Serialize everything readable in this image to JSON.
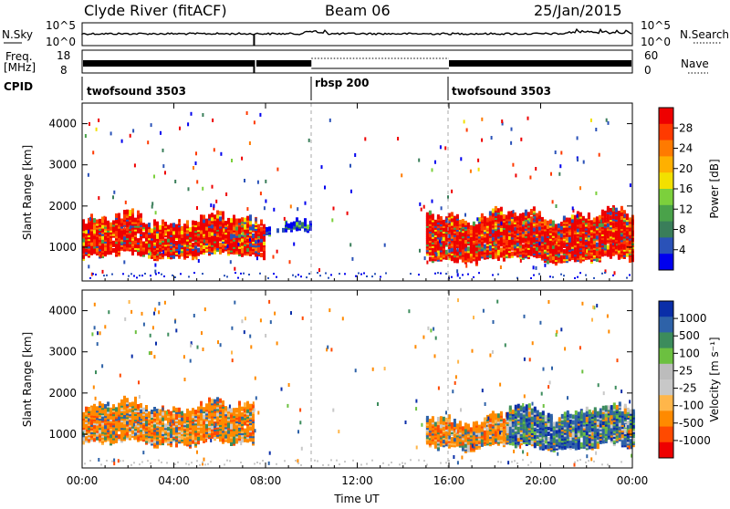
{
  "header": {
    "station": "Clyde River (fitACF)",
    "beam": "Beam 06",
    "date": "25/Jan/2015"
  },
  "strip_labels": {
    "nsky": "N.Sky",
    "nsky_top": "10^5",
    "nsky_bottom": "10^0",
    "nsearch": "N.Search",
    "nsearch_top": "10^5",
    "nsearch_bottom": "10^0",
    "freq_line1": "Freq.",
    "freq_line2": "[MHz]",
    "freq_top": "18",
    "freq_bottom": "8",
    "nave": "Nave",
    "nave_top": "60",
    "nave_bottom": "0",
    "cpid": "CPID"
  },
  "cpid_segments": [
    {
      "label": "twofsound 3503",
      "start_hour": 0
    },
    {
      "label": "rbsp 200",
      "start_hour": 10
    },
    {
      "label": "twofsound 3503",
      "start_hour": 16
    }
  ],
  "colors": {
    "power_scale": [
      "#0000ee",
      "#2a52b8",
      "#3a7e5a",
      "#4aa24a",
      "#7cd03c",
      "#f2e000",
      "#ffb000",
      "#ff7a00",
      "#ff3a00",
      "#ee0000"
    ],
    "velocity_scale": [
      "#ee0000",
      "#ff4a00",
      "#ff8a00",
      "#ffb64a",
      "#c8c8c8",
      "#bcbcbc",
      "#6cc040",
      "#3c8c5c",
      "#2e62a8",
      "#0a2ea8"
    ],
    "frame": "#000000"
  },
  "chart_data": [
    {
      "type": "heatmap",
      "panel": "power",
      "ylabel": "Slant Range [km]",
      "colorbar_label": "Power [dB]",
      "colorbar_ticks": [
        "4",
        "8",
        "12",
        "16",
        "20",
        "24",
        "28"
      ],
      "ylim": [
        180,
        4500
      ],
      "y_ticks": [
        "1000",
        "2000",
        "3000",
        "4000"
      ],
      "x_ticks": [
        "00:00",
        "04:00",
        "08:00",
        "12:00",
        "16:00",
        "20:00",
        "00:00"
      ],
      "xlim_hours": [
        0,
        24
      ],
      "scatter_regions": [
        {
          "hours": [
            0.0,
            8.0
          ],
          "range_km": [
            600,
            1800
          ],
          "level": "high"
        },
        {
          "hours": [
            8.0,
            10.0
          ],
          "range_km": [
            1200,
            1700
          ],
          "level": "low"
        },
        {
          "hours": [
            15.0,
            24.0
          ],
          "range_km": [
            500,
            1900
          ],
          "level": "high"
        }
      ]
    },
    {
      "type": "heatmap",
      "panel": "velocity",
      "ylabel": "Slant Range [km]",
      "xlabel": "Time UT",
      "colorbar_label": "Velocity [m s⁻¹]",
      "colorbar_ticks": [
        "1000",
        "500",
        "100",
        "25",
        "-25",
        "-100",
        "-500",
        "-1000"
      ],
      "ylim": [
        180,
        4500
      ],
      "y_ticks": [
        "1000",
        "2000",
        "3000",
        "4000"
      ],
      "x_ticks": [
        "00:00",
        "04:00",
        "08:00",
        "12:00",
        "16:00",
        "20:00",
        "00:00"
      ],
      "xlim_hours": [
        0,
        24
      ],
      "scatter_regions": [
        {
          "hours": [
            0.0,
            7.5
          ],
          "range_km": [
            600,
            1800
          ],
          "sign": "negative"
        },
        {
          "hours": [
            15.0,
            18.5
          ],
          "range_km": [
            500,
            1500
          ],
          "sign": "negative"
        },
        {
          "hours": [
            18.5,
            24.0
          ],
          "range_km": [
            500,
            1700
          ],
          "sign": "positive"
        }
      ]
    }
  ]
}
